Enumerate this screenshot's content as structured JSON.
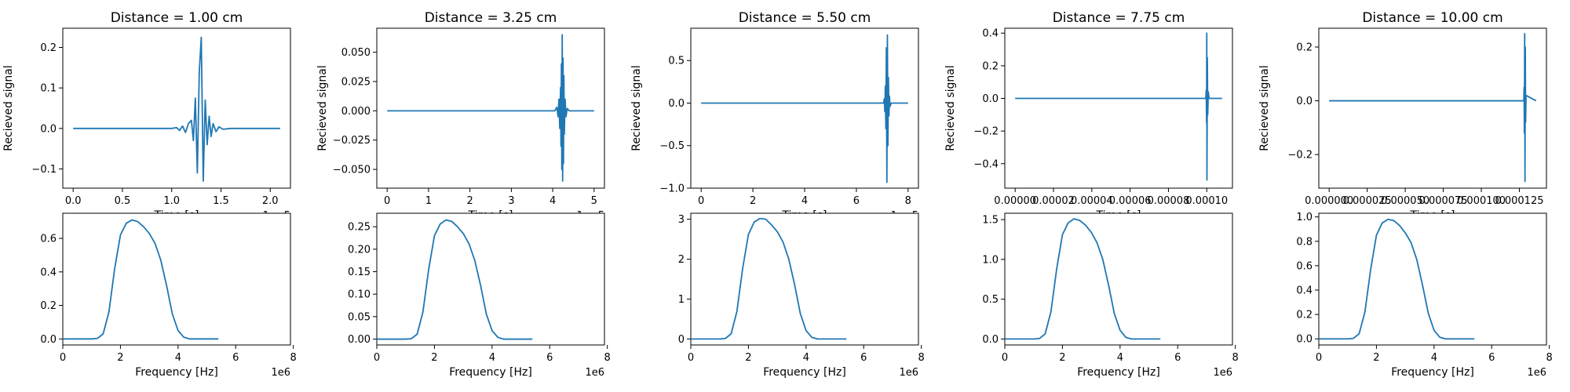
{
  "line_color": "#1f77b4",
  "chart_data": [
    {
      "type": "line",
      "panel": "time",
      "title": "Distance = 1.00 cm",
      "xlabel": "Time [s]",
      "ylabel": "Recieved signal",
      "x_offset_label": "1e−5",
      "xlim": [
        -0.105,
        2.205
      ],
      "ylim": [
        -0.1475,
        0.2475
      ],
      "xticks": [
        0,
        0.5,
        1.0,
        1.5,
        2.0
      ],
      "xtick_labels": [
        "0.0",
        "0.5",
        "1.0",
        "1.5",
        "2.0"
      ],
      "yticks": [
        -0.1,
        0.0,
        0.1,
        0.2
      ],
      "ytick_labels": [
        "−0.1",
        "0.0",
        "0.1",
        "0.2"
      ],
      "series": [
        {
          "x": [
            0,
            1.0,
            1.05,
            1.08,
            1.11,
            1.14,
            1.17,
            1.2,
            1.22,
            1.24,
            1.26,
            1.28,
            1.3,
            1.32,
            1.34,
            1.36,
            1.38,
            1.4,
            1.42,
            1.45,
            1.48,
            1.52,
            1.6,
            2.1
          ],
          "y": [
            0,
            0,
            0.002,
            -0.005,
            0.006,
            -0.01,
            0.012,
            0.02,
            -0.03,
            0.075,
            -0.11,
            0.14,
            0.225,
            -0.13,
            0.07,
            -0.04,
            0.03,
            -0.02,
            0.012,
            -0.008,
            0.004,
            -0.002,
            0,
            0
          ]
        }
      ]
    },
    {
      "type": "line",
      "panel": "time",
      "title": "Distance = 3.25 cm",
      "xlabel": "Time [s]",
      "ylabel": "Recieved signal",
      "x_offset_label": "1e−5",
      "xlim": [
        -0.25,
        5.25
      ],
      "ylim": [
        -0.066,
        0.0705
      ],
      "xticks": [
        0,
        1,
        2,
        3,
        4,
        5
      ],
      "xtick_labels": [
        "0",
        "1",
        "2",
        "3",
        "4",
        "5"
      ],
      "yticks": [
        -0.05,
        -0.025,
        0.0,
        0.025,
        0.05
      ],
      "ytick_labels": [
        "−0.050",
        "−0.025",
        "0.000",
        "0.025",
        "0.050"
      ],
      "series": [
        {
          "x": [
            0,
            4.05,
            4.1,
            4.13,
            4.15,
            4.17,
            4.19,
            4.2,
            4.21,
            4.22,
            4.23,
            4.24,
            4.25,
            4.26,
            4.27,
            4.28,
            4.3,
            4.32,
            4.35,
            4.4,
            5.0
          ],
          "y": [
            0,
            0,
            0.003,
            -0.005,
            0.01,
            -0.015,
            0.02,
            -0.03,
            0.04,
            -0.05,
            0.065,
            -0.06,
            0.045,
            -0.045,
            0.03,
            -0.02,
            0.01,
            -0.005,
            0.002,
            0,
            0
          ]
        }
      ]
    },
    {
      "type": "line",
      "panel": "time",
      "title": "Distance = 5.50 cm",
      "xlabel": "Time [s]",
      "ylabel": "Recieved signal",
      "x_offset_label": "1e−5",
      "xlim": [
        -0.4,
        8.4
      ],
      "ylim": [
        -1.0,
        0.88
      ],
      "xticks": [
        0,
        2,
        4,
        6,
        8
      ],
      "xtick_labels": [
        "0",
        "2",
        "4",
        "6",
        "8"
      ],
      "yticks": [
        -1.0,
        -0.5,
        0.0,
        0.5
      ],
      "ytick_labels": [
        "−1.0",
        "−0.5",
        "0.0",
        "0.5"
      ],
      "series": [
        {
          "x": [
            0,
            7.05,
            7.08,
            7.1,
            7.12,
            7.14,
            7.16,
            7.18,
            7.2,
            7.22,
            7.24,
            7.26,
            7.28,
            7.3,
            7.35,
            8.0
          ],
          "y": [
            0,
            0,
            0.05,
            -0.1,
            0.2,
            -0.3,
            0.65,
            -0.93,
            0.8,
            -0.5,
            0.3,
            -0.15,
            0.08,
            -0.04,
            0,
            0
          ]
        }
      ]
    },
    {
      "type": "line",
      "panel": "time",
      "title": "Distance = 7.75 cm",
      "xlabel": "Time [s]",
      "ylabel": "Recieved signal",
      "x_offset_label": "",
      "xlim": [
        -5.4e-06,
        0.0001134
      ],
      "ylim": [
        -0.55,
        0.43
      ],
      "xticks": [
        0,
        2e-05,
        4e-05,
        6e-05,
        8e-05,
        0.0001
      ],
      "xtick_labels": [
        "0.00000",
        "0.00002",
        "0.00004",
        "0.00006",
        "0.00008",
        "0.00010"
      ],
      "yticks": [
        -0.4,
        -0.2,
        0.0,
        0.2,
        0.4
      ],
      "ytick_labels": [
        "−0.4",
        "−0.2",
        "0.0",
        "0.2",
        "0.4"
      ],
      "series": [
        {
          "x": [
            0,
            9.95e-05,
            9.97e-05,
            9.99e-05,
            0.0001,
            0.0001001,
            0.0001003,
            0.0001005,
            0.0001008,
            0.0001012,
            0.000108
          ],
          "y": [
            0,
            0,
            0.05,
            -0.15,
            0.4,
            -0.5,
            0.25,
            -0.1,
            0.04,
            0,
            0
          ]
        }
      ]
    },
    {
      "type": "line",
      "panel": "time",
      "title": "Distance = 10.00 cm",
      "xlabel": "Time [s]",
      "ylabel": "Recieved signal",
      "x_offset_label": "",
      "xlim": [
        -6.8e-06,
        0.0001428
      ],
      "ylim": [
        -0.325,
        0.27
      ],
      "xticks": [
        0,
        2.5e-05,
        5e-05,
        7.5e-05,
        0.0001,
        0.000125
      ],
      "xtick_labels": [
        "0.000000",
        "0.000025",
        "0.000050",
        "0.000075",
        "0.000100",
        "0.000125"
      ],
      "yticks": [
        -0.2,
        0.0,
        0.2
      ],
      "ytick_labels": [
        "−0.2",
        "0.0",
        "0.2"
      ],
      "series": [
        {
          "x": [
            0,
            0.0001279,
            0.0001281,
            0.0001283,
            0.0001285,
            0.0001287,
            0.0001289,
            0.0001291,
            0.0001294,
            0.000136
          ],
          "y": [
            0,
            0,
            0.05,
            -0.12,
            0.25,
            -0.3,
            0.2,
            -0.08,
            0.02,
            0
          ]
        }
      ]
    },
    {
      "type": "line",
      "panel": "spectrum",
      "title": "",
      "xlabel": "Frequency [Hz]",
      "ylabel": "",
      "x_offset_label": "1e6",
      "xlim": [
        0,
        7.9
      ],
      "ylim": [
        -0.036,
        0.75
      ],
      "xticks": [
        0,
        2,
        4,
        6,
        8
      ],
      "xtick_labels": [
        "0",
        "2",
        "4",
        "6",
        "8"
      ],
      "yticks": [
        0.0,
        0.2,
        0.4,
        0.6
      ],
      "ytick_labels": [
        "0.0",
        "0.2",
        "0.4",
        "0.6"
      ],
      "series": [
        {
          "x": [
            0,
            1.0,
            1.2,
            1.4,
            1.6,
            1.8,
            2.0,
            2.2,
            2.4,
            2.6,
            2.8,
            3.0,
            3.2,
            3.4,
            3.6,
            3.8,
            4.0,
            4.2,
            4.4,
            5.4
          ],
          "y": [
            0,
            0,
            0.003,
            0.03,
            0.16,
            0.42,
            0.62,
            0.69,
            0.71,
            0.7,
            0.67,
            0.63,
            0.57,
            0.47,
            0.32,
            0.15,
            0.05,
            0.01,
            0,
            0
          ]
        }
      ]
    },
    {
      "type": "line",
      "panel": "spectrum",
      "title": "",
      "xlabel": "Frequency [Hz]",
      "ylabel": "",
      "x_offset_label": "1e6",
      "xlim": [
        0,
        7.9
      ],
      "ylim": [
        -0.013,
        0.28
      ],
      "xticks": [
        0,
        2,
        4,
        6,
        8
      ],
      "xtick_labels": [
        "0",
        "2",
        "4",
        "6",
        "8"
      ],
      "yticks": [
        0.0,
        0.05,
        0.1,
        0.15,
        0.2,
        0.25
      ],
      "ytick_labels": [
        "0.00",
        "0.05",
        "0.10",
        "0.15",
        "0.20",
        "0.25"
      ],
      "series": [
        {
          "x": [
            0,
            1.0,
            1.2,
            1.4,
            1.6,
            1.8,
            2.0,
            2.2,
            2.4,
            2.6,
            2.8,
            3.0,
            3.2,
            3.4,
            3.6,
            3.8,
            4.0,
            4.2,
            4.4,
            5.4
          ],
          "y": [
            0,
            0,
            0.001,
            0.011,
            0.06,
            0.155,
            0.23,
            0.256,
            0.265,
            0.262,
            0.25,
            0.235,
            0.212,
            0.175,
            0.12,
            0.056,
            0.019,
            0.004,
            0,
            0
          ]
        }
      ]
    },
    {
      "type": "line",
      "panel": "spectrum",
      "title": "",
      "xlabel": "Frequency [Hz]",
      "ylabel": "",
      "x_offset_label": "1e6",
      "xlim": [
        0,
        7.9
      ],
      "ylim": [
        -0.15,
        3.15
      ],
      "xticks": [
        0,
        2,
        4,
        6,
        8
      ],
      "xtick_labels": [
        "0",
        "2",
        "4",
        "6",
        "8"
      ],
      "yticks": [
        0,
        1,
        2,
        3
      ],
      "ytick_labels": [
        "0",
        "1",
        "2",
        "3"
      ],
      "series": [
        {
          "x": [
            0,
            1.0,
            1.2,
            1.4,
            1.6,
            1.8,
            2.0,
            2.2,
            2.4,
            2.6,
            2.8,
            3.0,
            3.2,
            3.4,
            3.6,
            3.8,
            4.0,
            4.2,
            4.4,
            5.4
          ],
          "y": [
            0,
            0,
            0.012,
            0.13,
            0.69,
            1.77,
            2.62,
            2.93,
            3.02,
            3.0,
            2.86,
            2.69,
            2.43,
            2.0,
            1.37,
            0.64,
            0.21,
            0.04,
            0,
            0
          ]
        }
      ]
    },
    {
      "type": "line",
      "panel": "spectrum",
      "title": "",
      "xlabel": "Frequency [Hz]",
      "ylabel": "",
      "x_offset_label": "1e6",
      "xlim": [
        0,
        7.9
      ],
      "ylim": [
        -0.075,
        1.58
      ],
      "xticks": [
        0,
        2,
        4,
        6,
        8
      ],
      "xtick_labels": [
        "0",
        "2",
        "4",
        "6",
        "8"
      ],
      "yticks": [
        0.0,
        0.5,
        1.0,
        1.5
      ],
      "ytick_labels": [
        "0.0",
        "0.5",
        "1.0",
        "1.5"
      ],
      "series": [
        {
          "x": [
            0,
            1.0,
            1.2,
            1.4,
            1.6,
            1.8,
            2.0,
            2.2,
            2.4,
            2.6,
            2.8,
            3.0,
            3.2,
            3.4,
            3.6,
            3.8,
            4.0,
            4.2,
            4.4,
            5.4
          ],
          "y": [
            0,
            0,
            0.006,
            0.064,
            0.34,
            0.88,
            1.31,
            1.46,
            1.51,
            1.49,
            1.43,
            1.34,
            1.21,
            1.0,
            0.68,
            0.32,
            0.11,
            0.02,
            0,
            0
          ]
        }
      ]
    },
    {
      "type": "line",
      "panel": "spectrum",
      "title": "",
      "xlabel": "Frequency [Hz]",
      "ylabel": "",
      "x_offset_label": "1e6",
      "xlim": [
        0,
        7.9
      ],
      "ylim": [
        -0.05,
        1.03
      ],
      "xticks": [
        0,
        2,
        4,
        6,
        8
      ],
      "xtick_labels": [
        "0",
        "2",
        "4",
        "6",
        "8"
      ],
      "yticks": [
        0.0,
        0.2,
        0.4,
        0.6,
        0.8,
        1.0
      ],
      "ytick_labels": [
        "0.0",
        "0.2",
        "0.4",
        "0.6",
        "0.8",
        "1.0"
      ],
      "series": [
        {
          "x": [
            0,
            1.0,
            1.2,
            1.4,
            1.6,
            1.8,
            2.0,
            2.2,
            2.4,
            2.6,
            2.8,
            3.0,
            3.2,
            3.4,
            3.6,
            3.8,
            4.0,
            4.2,
            4.4,
            5.4
          ],
          "y": [
            0,
            0,
            0.004,
            0.042,
            0.22,
            0.57,
            0.85,
            0.95,
            0.98,
            0.97,
            0.93,
            0.87,
            0.79,
            0.65,
            0.44,
            0.21,
            0.07,
            0.013,
            0,
            0
          ]
        }
      ]
    }
  ]
}
